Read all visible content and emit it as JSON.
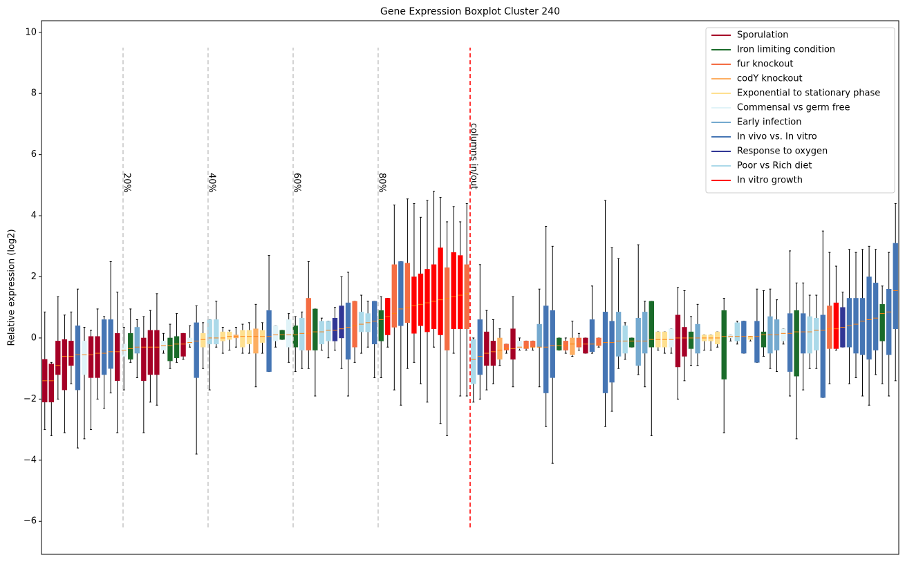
{
  "chart_data": {
    "type": "boxplot",
    "title": "Gene Expression Boxplot Cluster 240",
    "y_label": "Relative expression (log2)",
    "ylim": [
      -7.08,
      10.38
    ],
    "yticks": [
      {
        "value": -6,
        "label": "−6"
      },
      {
        "value": -4,
        "label": "−4"
      },
      {
        "value": -2,
        "label": "−2"
      },
      0,
      2,
      4,
      6,
      8,
      10
    ],
    "xlim": [
      0.5,
      130.5
    ],
    "legend": "upper right",
    "median_color": "#ff7f0e",
    "groups": [
      {
        "name": "Sporulation",
        "color": "#a50026"
      },
      {
        "name": "Iron limiting condition",
        "color": "#1a6b2a"
      },
      {
        "name": "fur knockout",
        "color": "#f46d43"
      },
      {
        "name": "codY knockout",
        "color": "#fdae61"
      },
      {
        "name": "Exponential to stationary phase",
        "color": "#fee090"
      },
      {
        "name": "Commensal vs germ free",
        "color": "#e0f3f8"
      },
      {
        "name": "Early infection",
        "color": "#74a9cf"
      },
      {
        "name": "In vivo vs. In vitro",
        "color": "#4575b4"
      },
      {
        "name": "Response to oxygen",
        "color": "#313695"
      },
      {
        "name": "Poor vs Rich diet",
        "color": "#abd9e9"
      },
      {
        "name": "In vitro growth",
        "color": "#ff0000"
      }
    ],
    "vline_range": [
      -6.2,
      9.5
    ],
    "vlines": [
      {
        "x": 12.87,
        "label": "20%",
        "color": "#c8c8c8"
      },
      {
        "x": 25.76,
        "label": "40%",
        "color": "#c8c8c8"
      },
      {
        "x": 38.66,
        "label": "60%",
        "color": "#c8c8c8"
      },
      {
        "x": 51.55,
        "label": "80%",
        "color": "#c8c8c8"
      },
      {
        "x": 65.5,
        "label": "columns in/out",
        "color": "#ff0000"
      }
    ],
    "boxes": {
      "group": [
        0,
        0,
        0,
        0,
        0,
        7,
        5,
        0,
        0,
        7,
        7,
        0,
        5,
        1,
        6,
        0,
        0,
        0,
        5,
        1,
        1,
        0,
        5,
        7,
        4,
        9,
        9,
        4,
        4,
        3,
        4,
        4,
        3,
        4,
        7,
        5,
        1,
        5,
        1,
        9,
        2,
        1,
        9,
        9,
        8,
        8,
        7,
        2,
        9,
        9,
        7,
        1,
        10,
        2,
        7,
        2,
        10,
        10,
        10,
        10,
        10,
        2,
        10,
        10,
        2,
        9,
        7,
        0,
        0,
        3,
        2,
        0,
        5,
        2,
        2,
        6,
        7,
        7,
        1,
        2,
        3,
        2,
        0,
        7,
        2,
        7,
        7,
        6,
        9,
        1,
        6,
        6,
        1,
        4,
        4,
        5,
        0,
        0,
        1,
        6,
        4,
        4,
        4,
        1,
        5,
        9,
        7,
        4,
        7,
        1,
        6,
        6,
        5,
        7,
        1,
        7,
        9,
        9,
        7,
        2,
        10,
        8,
        7,
        7,
        7,
        7,
        7,
        1,
        7,
        7
      ],
      "whislo": [
        -3.0,
        -3.2,
        -2.0,
        -3.1,
        -1.5,
        -3.6,
        -3.3,
        -3.0,
        -2.0,
        -2.3,
        -1.8,
        -3.1,
        -1.7,
        -0.8,
        -1.3,
        -3.1,
        -2.1,
        -2.2,
        -0.5,
        -1.0,
        -0.8,
        -0.7,
        -0.3,
        -3.8,
        -1.0,
        -1.7,
        -0.3,
        -0.5,
        -0.4,
        -0.3,
        -0.5,
        -0.5,
        -1.6,
        -0.5,
        -1.1,
        -0.3,
        -0.05,
        -0.8,
        -1.1,
        -1.0,
        -1.0,
        -1.9,
        -0.4,
        -0.65,
        -0.4,
        -1.0,
        -1.9,
        -0.8,
        -0.5,
        -0.3,
        -1.3,
        -1.3,
        -0.3,
        -1.7,
        -2.2,
        -1.0,
        -0.8,
        -1.5,
        -2.1,
        -0.3,
        -2.8,
        -3.2,
        -0.5,
        -1.9,
        -1.9,
        -2.1,
        -2.0,
        -1.7,
        -1.5,
        -0.9,
        -0.5,
        -1.6,
        -0.4,
        -0.4,
        -0.4,
        -1.6,
        -2.9,
        -4.1,
        -0.4,
        -0.5,
        -0.6,
        -0.4,
        -0.5,
        -0.5,
        -0.3,
        -2.9,
        -2.4,
        -1.0,
        -0.7,
        -0.3,
        -1.2,
        -1.6,
        -3.2,
        -0.4,
        -0.5,
        -0.5,
        -2.0,
        -1.4,
        -0.9,
        -0.9,
        -0.4,
        -0.4,
        -0.3,
        -3.1,
        -0.1,
        -0.2,
        -0.5,
        -0.1,
        -0.8,
        -0.6,
        -1.0,
        -1.1,
        -0.2,
        -1.9,
        -3.3,
        -1.7,
        -1.0,
        -1.0,
        -1.95,
        -1.5,
        -0.4,
        -0.3,
        -1.5,
        -1.3,
        -1.9,
        -2.2,
        -1.2,
        -1.5,
        -1.9,
        -1.4
      ],
      "q1": [
        -2.1,
        -2.1,
        -1.2,
        -1.7,
        -0.9,
        -1.7,
        -1.2,
        -1.3,
        -1.3,
        -1.2,
        -1.0,
        -1.4,
        -0.6,
        -0.7,
        -0.5,
        -1.4,
        -1.2,
        -1.2,
        -0.4,
        -0.75,
        -0.65,
        -0.6,
        -0.2,
        -1.3,
        -0.3,
        -0.2,
        -0.2,
        -0.1,
        -0.05,
        0.0,
        -0.3,
        -0.2,
        -0.5,
        -0.15,
        -1.1,
        -0.1,
        -0.05,
        -0.3,
        -0.3,
        -0.4,
        -0.4,
        -0.4,
        -0.2,
        -0.1,
        -0.1,
        0.0,
        -0.7,
        -0.3,
        0.2,
        0.2,
        -0.2,
        -0.1,
        0.1,
        0.35,
        0.4,
        0.5,
        0.15,
        0.4,
        0.2,
        0.3,
        0.1,
        -0.4,
        0.3,
        0.3,
        0.3,
        -1.5,
        -1.2,
        -0.9,
        -0.9,
        -0.7,
        -0.4,
        -0.7,
        -0.35,
        -0.35,
        -0.3,
        -0.3,
        -1.8,
        -1.3,
        -0.4,
        -0.4,
        -0.55,
        -0.3,
        -0.5,
        -0.45,
        -0.25,
        -1.8,
        -1.45,
        -0.6,
        -0.5,
        -0.3,
        -0.9,
        -0.5,
        -0.3,
        -0.3,
        -0.3,
        -0.3,
        -0.95,
        -0.6,
        -0.35,
        -0.5,
        -0.1,
        -0.1,
        -0.2,
        -1.35,
        0.0,
        -0.1,
        -0.5,
        -0.05,
        -0.8,
        -0.3,
        -0.5,
        -0.4,
        -0.1,
        -1.1,
        -1.25,
        -0.5,
        -0.5,
        -0.4,
        -1.95,
        -0.35,
        -0.35,
        -0.3,
        -0.3,
        -0.5,
        -0.55,
        -0.7,
        -0.4,
        -0.1,
        -0.55,
        0.3
      ],
      "med": [
        -1.4,
        -1.4,
        -0.9,
        -0.6,
        -0.6,
        -0.55,
        -0.55,
        -0.55,
        -0.5,
        -0.5,
        -0.45,
        -0.45,
        -0.4,
        -0.35,
        -0.3,
        -0.3,
        -0.3,
        -0.3,
        -0.25,
        -0.25,
        -0.2,
        -0.2,
        -0.15,
        -0.1,
        -0.05,
        0.0,
        0.0,
        0.0,
        0.05,
        0.05,
        0.05,
        0.05,
        0.05,
        0.05,
        0.05,
        0.1,
        0.1,
        0.1,
        0.1,
        0.15,
        0.15,
        0.2,
        0.2,
        0.25,
        0.25,
        0.3,
        0.35,
        0.4,
        0.45,
        0.5,
        0.55,
        0.6,
        0.7,
        0.8,
        0.95,
        1.0,
        1.05,
        1.1,
        1.15,
        1.2,
        1.25,
        1.3,
        1.35,
        1.4,
        1.45,
        -0.7,
        -0.6,
        -0.5,
        -0.45,
        -0.4,
        -0.35,
        -0.35,
        -0.3,
        -0.3,
        -0.3,
        -0.3,
        -0.3,
        -0.25,
        -0.25,
        -0.25,
        -0.2,
        -0.2,
        -0.2,
        -0.2,
        -0.2,
        -0.15,
        -0.15,
        -0.1,
        -0.1,
        -0.1,
        -0.1,
        -0.1,
        -0.05,
        -0.05,
        -0.05,
        -0.05,
        0.0,
        0.0,
        0.0,
        0.0,
        0.0,
        0.0,
        0.0,
        0.05,
        0.05,
        0.05,
        0.05,
        0.05,
        0.05,
        0.1,
        0.1,
        0.1,
        0.15,
        0.15,
        0.2,
        0.2,
        0.2,
        0.25,
        0.25,
        0.3,
        0.3,
        0.35,
        0.4,
        0.45,
        0.55,
        0.6,
        0.65,
        0.8,
        0.85,
        1.55
      ],
      "q3": [
        -0.7,
        -0.85,
        -0.1,
        -0.05,
        -0.1,
        0.4,
        -0.1,
        0.05,
        0.05,
        0.6,
        0.6,
        0.15,
        -0.2,
        0.15,
        0.35,
        0.0,
        0.25,
        0.25,
        -0.1,
        0.0,
        0.05,
        0.15,
        0.0,
        0.5,
        0.15,
        0.6,
        0.6,
        0.2,
        0.2,
        0.1,
        0.25,
        0.25,
        0.3,
        0.25,
        0.9,
        0.4,
        0.25,
        0.6,
        0.4,
        0.65,
        1.3,
        0.95,
        0.55,
        0.55,
        0.65,
        1.05,
        1.15,
        1.2,
        0.85,
        0.8,
        1.2,
        0.9,
        1.3,
        2.4,
        2.5,
        2.45,
        2.0,
        2.1,
        2.25,
        2.4,
        2.95,
        2.3,
        2.8,
        2.7,
        2.4,
        -0.05,
        0.6,
        0.2,
        -0.1,
        0.0,
        -0.2,
        0.3,
        -0.1,
        -0.1,
        -0.1,
        0.45,
        1.05,
        0.9,
        0.0,
        -0.1,
        0.0,
        0.0,
        0.0,
        0.6,
        0.0,
        0.85,
        0.55,
        0.85,
        0.4,
        0.0,
        0.65,
        0.85,
        1.2,
        0.2,
        0.2,
        0.3,
        0.75,
        0.35,
        0.2,
        0.45,
        0.1,
        0.1,
        0.2,
        0.9,
        0.1,
        0.5,
        0.55,
        0.05,
        0.55,
        0.2,
        0.7,
        0.6,
        0.3,
        0.8,
        0.9,
        0.8,
        0.7,
        0.65,
        0.75,
        1.05,
        1.15,
        1.0,
        1.3,
        1.3,
        1.3,
        2.0,
        1.8,
        1.1,
        1.6,
        3.1
      ],
      "whishi": [
        0.85,
        -0.8,
        1.35,
        0.75,
        0.85,
        1.6,
        0.35,
        0.25,
        0.95,
        0.7,
        2.5,
        1.5,
        0.35,
        0.95,
        0.6,
        0.7,
        0.9,
        1.45,
        0.15,
        0.45,
        0.8,
        0.15,
        0.4,
        1.05,
        0.5,
        0.6,
        1.2,
        0.35,
        0.25,
        0.35,
        0.45,
        0.5,
        1.1,
        0.5,
        2.7,
        0.4,
        0.25,
        0.8,
        0.7,
        0.85,
        2.5,
        0.95,
        0.65,
        0.55,
        1.0,
        2.0,
        2.15,
        1.2,
        1.4,
        1.2,
        1.2,
        1.35,
        1.3,
        4.35,
        2.5,
        4.55,
        4.4,
        3.95,
        4.5,
        4.8,
        4.6,
        3.8,
        4.3,
        3.8,
        4.4,
        0.0,
        2.4,
        0.9,
        0.6,
        0.3,
        -0.2,
        1.35,
        0.0,
        -0.1,
        -0.1,
        1.6,
        3.65,
        3.0,
        0.0,
        0.0,
        0.55,
        0.15,
        0.0,
        1.7,
        0.0,
        4.5,
        2.95,
        2.6,
        0.5,
        0.0,
        3.05,
        1.2,
        1.2,
        0.2,
        0.2,
        0.3,
        1.65,
        1.55,
        0.7,
        1.1,
        0.1,
        0.1,
        0.2,
        1.3,
        0.1,
        0.55,
        0.55,
        0.05,
        1.6,
        1.55,
        1.6,
        1.25,
        0.3,
        2.85,
        1.8,
        1.8,
        1.4,
        1.4,
        3.5,
        2.8,
        2.35,
        1.5,
        2.9,
        2.8,
        2.9,
        3.0,
        2.9,
        1.7,
        2.8,
        4.4
      ]
    }
  }
}
